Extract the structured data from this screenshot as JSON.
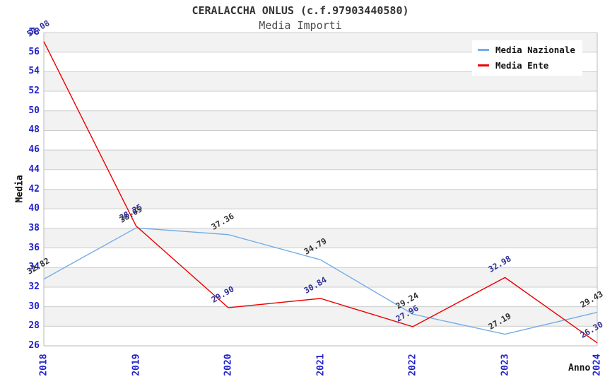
{
  "chart_data": {
    "type": "line",
    "title": "CERALACCHA ONLUS (c.f.97903440580)",
    "subtitle": "Media Importi",
    "xlabel": "Anno",
    "ylabel": "Media",
    "categories": [
      "2018",
      "2019",
      "2020",
      "2021",
      "2022",
      "2023",
      "2024"
    ],
    "series": [
      {
        "name": "Media Nazionale",
        "color": "#74ade6",
        "label_color": "#333333",
        "values": [
          32.82,
          38.05,
          37.36,
          34.79,
          29.24,
          27.19,
          29.43
        ]
      },
      {
        "name": "Media Ente",
        "color": "#ee0000",
        "label_color": "#30309a",
        "values": [
          57.08,
          38.25,
          29.9,
          30.84,
          27.96,
          32.98,
          26.3
        ]
      }
    ],
    "ylim": [
      26,
      58
    ],
    "ytick_step": 2,
    "grid": true,
    "legend_position": "top-right",
    "band_colors": [
      "#f2f2f2",
      "#ffffff"
    ],
    "gridline_color": "#cccccc",
    "axis_border_color": "#bbbbbb",
    "tick_label_color": "#2323cb"
  }
}
